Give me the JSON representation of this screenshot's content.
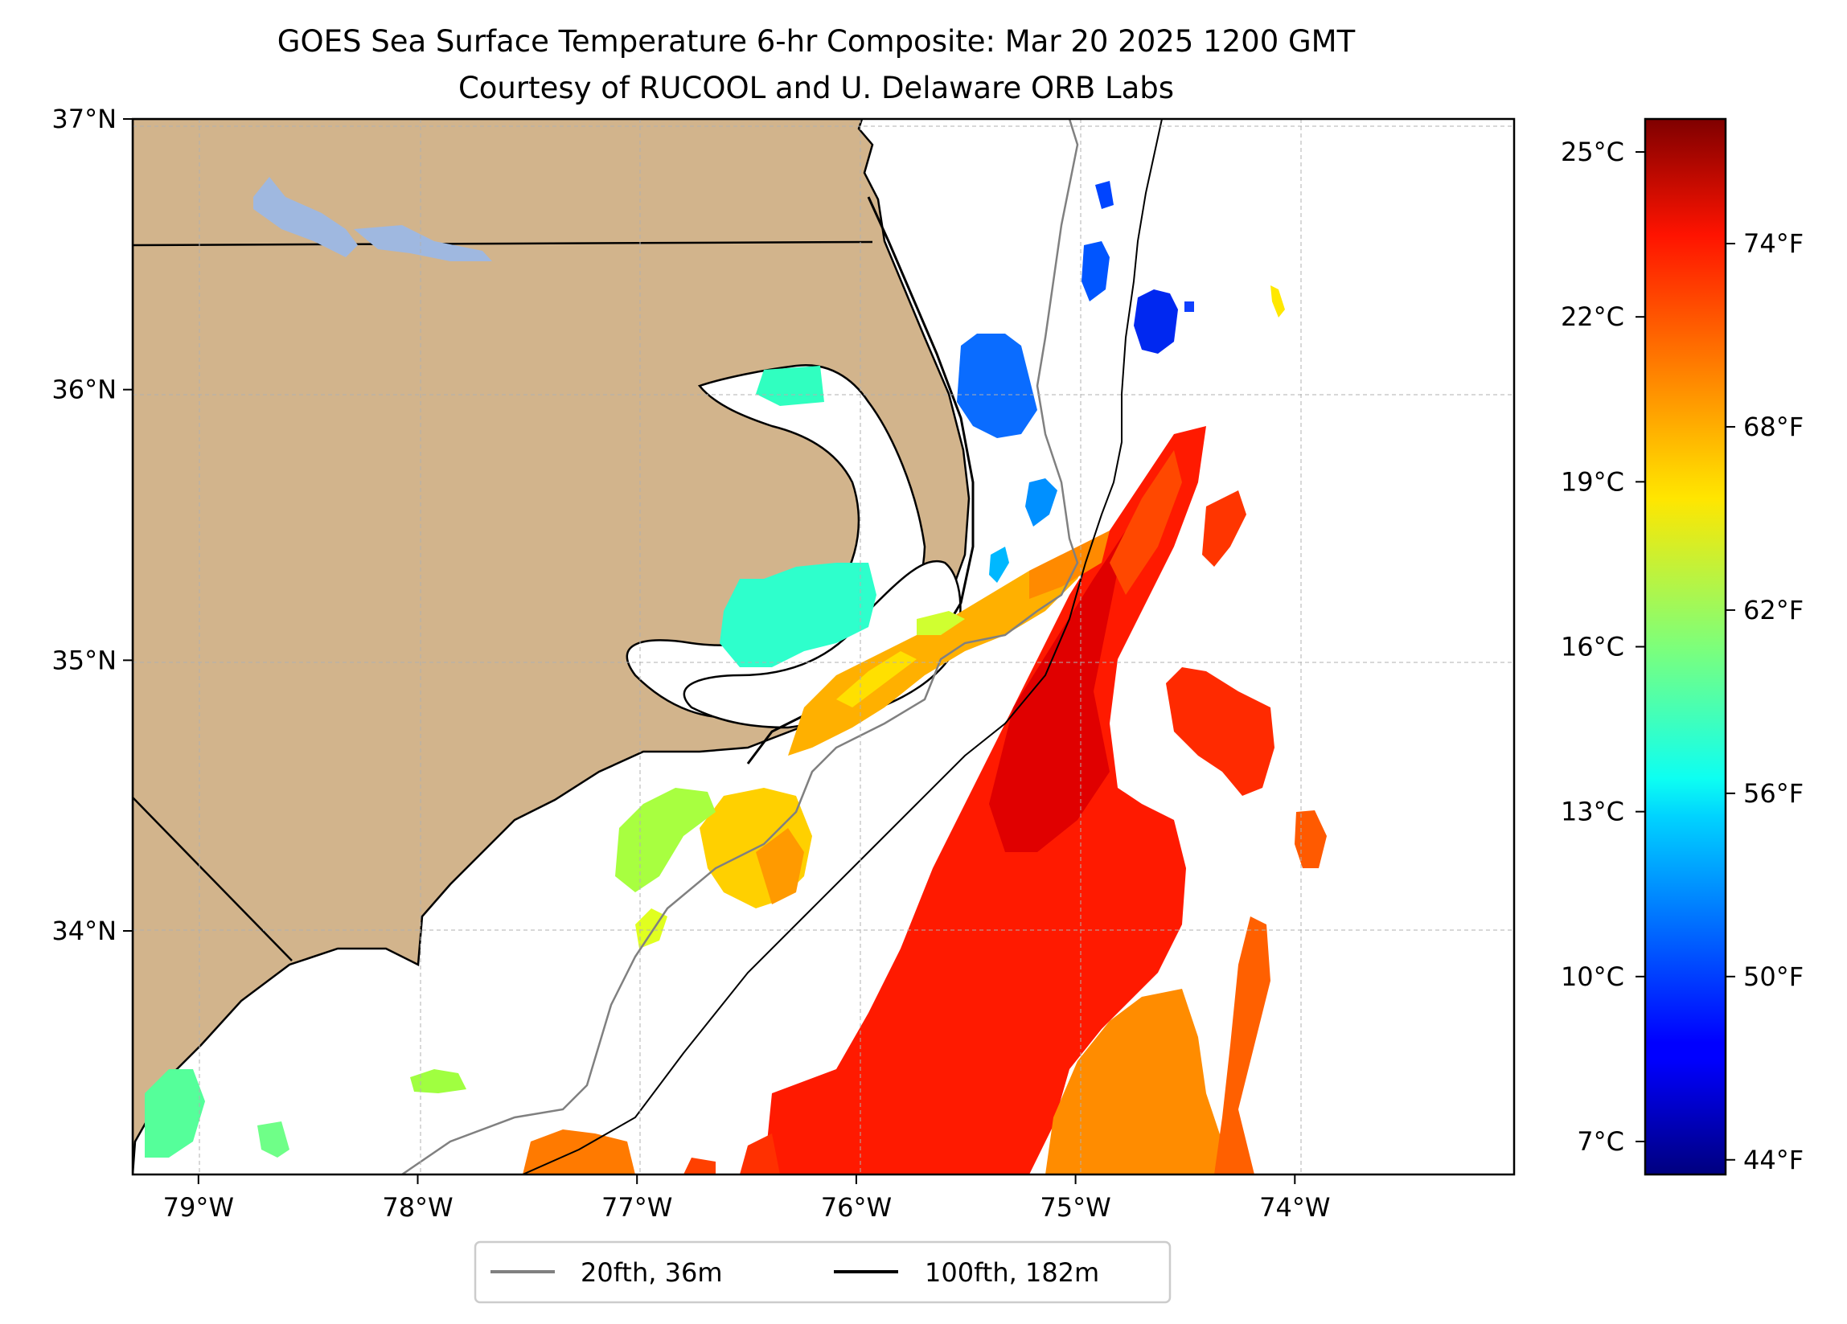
{
  "title": {
    "line1": "GOES Sea Surface Temperature 6-hr Composite: Mar 20 2025 1200 GMT",
    "line2": "Courtesy of RUCOOL and U. Delaware ORB Labs"
  },
  "map": {
    "lon_range": [
      -79.3,
      -73.0
    ],
    "lat_range": [
      33.1,
      37.0
    ],
    "lon_ticks": [
      {
        "value": -79,
        "label": "79°W"
      },
      {
        "value": -78,
        "label": "78°W"
      },
      {
        "value": -77,
        "label": "77°W"
      },
      {
        "value": -76,
        "label": "76°W"
      },
      {
        "value": -75,
        "label": "75°W"
      },
      {
        "value": -74,
        "label": "74°W"
      }
    ],
    "lat_ticks": [
      {
        "value": 34,
        "label": "34°N"
      },
      {
        "value": 35,
        "label": "35°N"
      },
      {
        "value": 36,
        "label": "36°N"
      },
      {
        "value": 37,
        "label": "37°N"
      }
    ],
    "gridlines": true,
    "land_color": "#d2b48c",
    "lake_color": "#9fb8e0"
  },
  "colorbar": {
    "celsius_ticks": [
      {
        "value": 7,
        "label": "7°C"
      },
      {
        "value": 10,
        "label": "10°C"
      },
      {
        "value": 13,
        "label": "13°C"
      },
      {
        "value": 16,
        "label": "16°C"
      },
      {
        "value": 19,
        "label": "19°C"
      },
      {
        "value": 22,
        "label": "22°C"
      },
      {
        "value": 25,
        "label": "25°C"
      }
    ],
    "fahrenheit_ticks": [
      {
        "value": 44,
        "label": "44°F"
      },
      {
        "value": 50,
        "label": "50°F"
      },
      {
        "value": 56,
        "label": "56°F"
      },
      {
        "value": 62,
        "label": "62°F"
      },
      {
        "value": 68,
        "label": "68°F"
      },
      {
        "value": 74,
        "label": "74°F"
      }
    ],
    "range_c": [
      6.4,
      25.6
    ],
    "colormap": "jet"
  },
  "legend": {
    "items": [
      {
        "label": "20fth, 36m",
        "color": "#808080"
      },
      {
        "label": "100fth, 182m",
        "color": "#000000"
      }
    ]
  }
}
